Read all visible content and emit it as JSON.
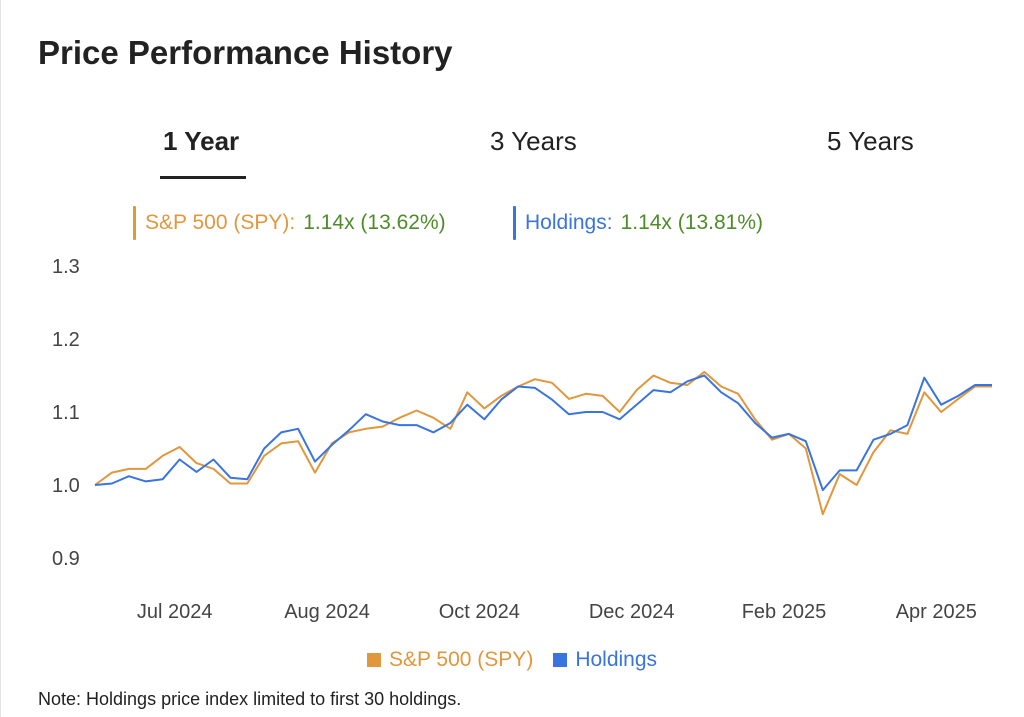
{
  "title": "Price Performance History",
  "tabs": [
    {
      "label": "1 Year",
      "active": true
    },
    {
      "label": "3 Years",
      "active": false
    },
    {
      "label": "5 Years",
      "active": false
    }
  ],
  "summary": {
    "spy": {
      "name": "S&P 500 (SPY):",
      "value": "1.14x (13.62%)"
    },
    "holdings": {
      "name": "Holdings:",
      "value": "1.14x (13.81%)"
    }
  },
  "colors": {
    "spy": "#e0973d",
    "holdings": "#3a74e0",
    "value": "#4e8c2a"
  },
  "note": "Note: Holdings price index limited to first 30 holdings.",
  "chart_data": {
    "type": "line",
    "title": "",
    "xlabel": "",
    "ylabel": "",
    "ylim": [
      0.9,
      1.3
    ],
    "yticks": [
      "1.3",
      "1.2",
      "1.1",
      "1.0",
      "0.9"
    ],
    "ytick_values": [
      1.3,
      1.2,
      1.1,
      1.0,
      0.9
    ],
    "xticks": [
      {
        "label": "Jul 2024",
        "index": 4
      },
      {
        "label": "Aug 2024",
        "index": 13
      },
      {
        "label": "Oct 2024",
        "index": 22
      },
      {
        "label": "Dec 2024",
        "index": 31
      },
      {
        "label": "Feb 2025",
        "index": 40
      },
      {
        "label": "Apr 2025",
        "index": 49
      }
    ],
    "legend": "bottom-center",
    "series": [
      {
        "name": "S&P 500 (SPY)",
        "color": "#e0973d",
        "values": [
          1.0,
          1.017,
          1.022,
          1.022,
          1.04,
          1.052,
          1.03,
          1.022,
          1.002,
          1.002,
          1.04,
          1.057,
          1.06,
          1.017,
          1.057,
          1.072,
          1.077,
          1.08,
          1.092,
          1.102,
          1.092,
          1.077,
          1.127,
          1.105,
          1.122,
          1.135,
          1.145,
          1.14,
          1.118,
          1.125,
          1.122,
          1.1,
          1.13,
          1.15,
          1.14,
          1.137,
          1.155,
          1.135,
          1.125,
          1.09,
          1.062,
          1.07,
          1.05,
          0.96,
          1.015,
          1.0,
          1.045,
          1.075,
          1.07,
          1.127,
          1.1,
          1.118,
          1.135,
          1.135
        ]
      },
      {
        "name": "Holdings",
        "color": "#3a74e0",
        "values": [
          1.0,
          1.002,
          1.012,
          1.005,
          1.008,
          1.035,
          1.018,
          1.035,
          1.01,
          1.008,
          1.05,
          1.072,
          1.077,
          1.032,
          1.055,
          1.075,
          1.097,
          1.087,
          1.082,
          1.082,
          1.072,
          1.085,
          1.11,
          1.09,
          1.117,
          1.135,
          1.133,
          1.117,
          1.097,
          1.1,
          1.1,
          1.09,
          1.11,
          1.13,
          1.127,
          1.142,
          1.15,
          1.127,
          1.112,
          1.085,
          1.065,
          1.07,
          1.06,
          0.993,
          1.02,
          1.02,
          1.062,
          1.07,
          1.082,
          1.147,
          1.11,
          1.122,
          1.137,
          1.137
        ]
      }
    ]
  }
}
